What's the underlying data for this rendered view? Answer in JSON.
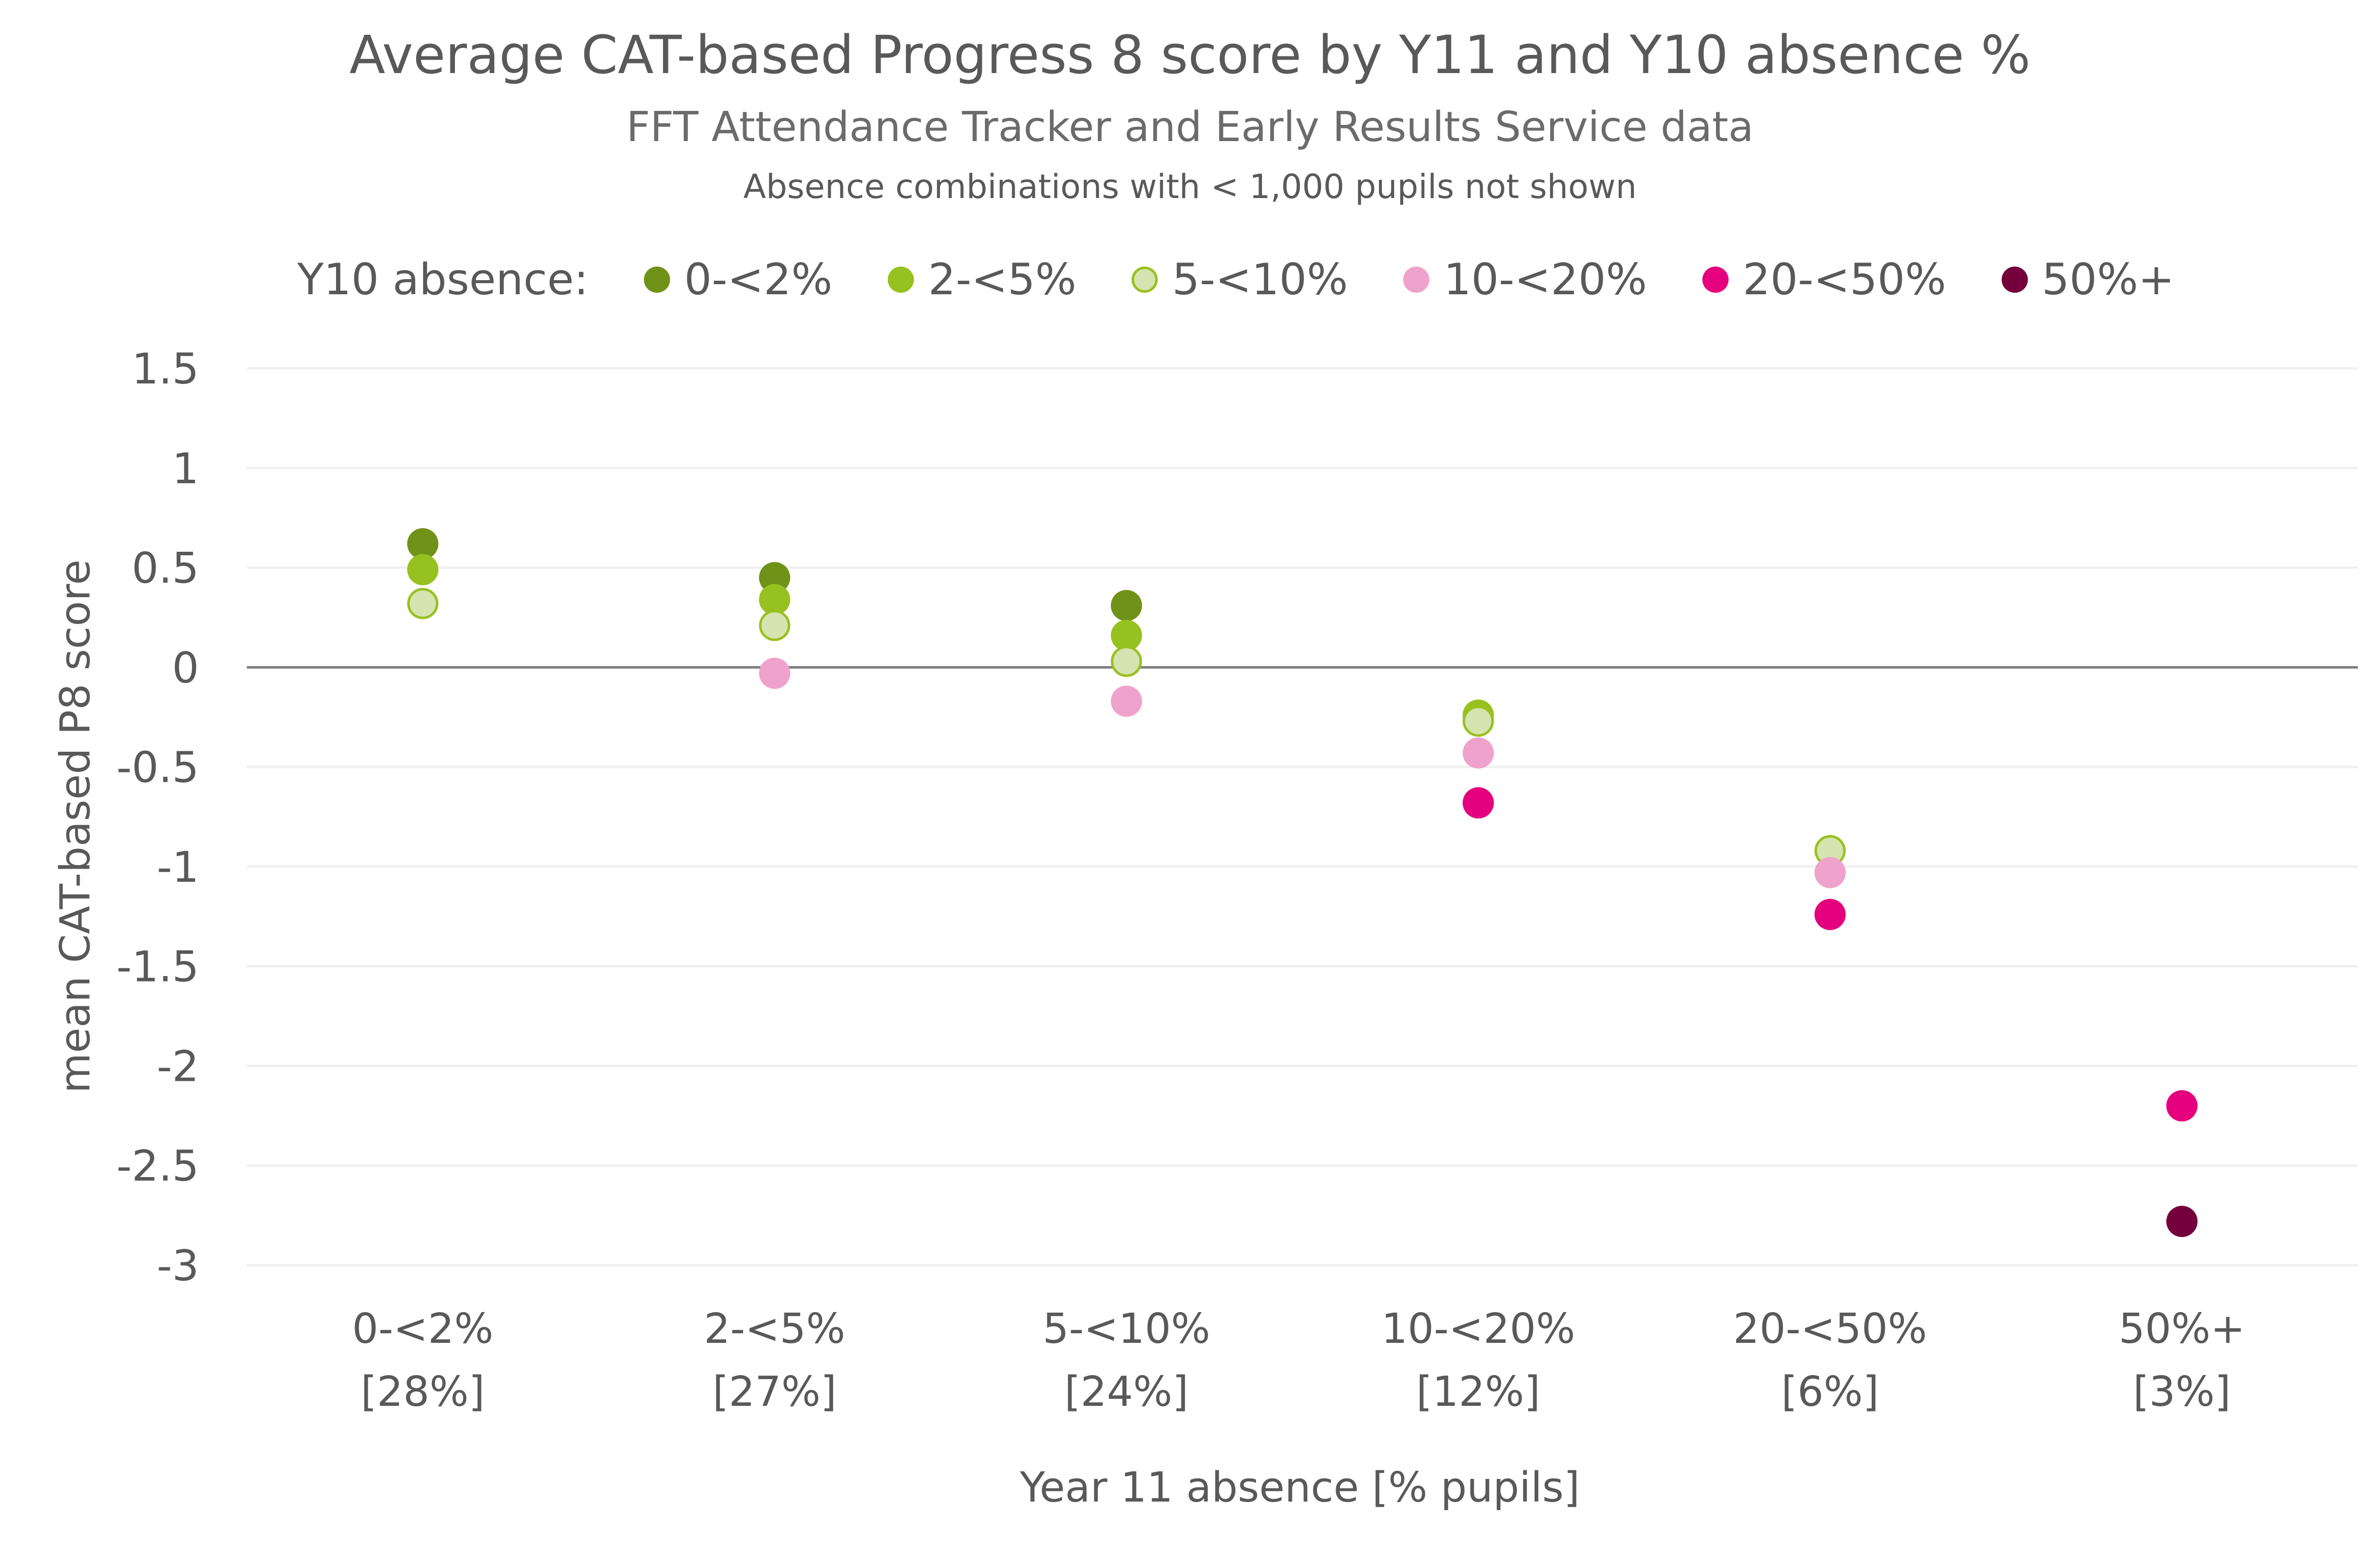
{
  "header": {
    "title": "Average CAT-based Progress 8 score by Y11 and Y10 absence %",
    "subtitle": "FFT Attendance Tracker and Early Results Service data",
    "note": "Absence combinations with < 1,000 pupils not shown"
  },
  "legend": {
    "title": "Y10 absence:"
  },
  "chart_data": {
    "type": "scatter",
    "title": "Average CAT-based Progress 8 score by Y11 and Y10 absence %",
    "subtitle": "FFT Attendance Tracker and Early Results Service data",
    "annotation": "Absence combinations with < 1,000 pupils not shown",
    "xlabel": "Year 11 absence [% pupils]",
    "ylabel": "mean CAT-based P8 score",
    "categories": [
      "0-<2%",
      "2-<5%",
      "5-<10%",
      "10-<20%",
      "20-<50%",
      "50%+"
    ],
    "category_shares": [
      "[28%]",
      "[27%]",
      "[24%]",
      "[12%]",
      "[6%]",
      "[3%]"
    ],
    "ylim": [
      -3,
      1.5
    ],
    "yticks": [
      1.5,
      1,
      0.5,
      0,
      -0.5,
      -1,
      -1.5,
      -2,
      -2.5,
      -3
    ],
    "ytick_labels": [
      "1.5",
      "1",
      "0.5",
      "0",
      "-0.5",
      "-1",
      "-1.5",
      "-2",
      "-2.5",
      "-3"
    ],
    "grid": true,
    "legend_position": "top",
    "legend_title": "Y10 absence:",
    "series": [
      {
        "name": "0-<2%",
        "color": "#719218",
        "stroke": "#719218",
        "values": [
          0.62,
          0.45,
          0.31,
          null,
          null,
          null
        ]
      },
      {
        "name": "2-<5%",
        "color": "#97C11F",
        "stroke": "#97C11F",
        "values": [
          0.49,
          0.34,
          0.16,
          -0.24,
          null,
          null
        ]
      },
      {
        "name": "5-<10%",
        "color": "#D5E4B0",
        "stroke": "#97C11F",
        "values": [
          0.32,
          0.21,
          0.03,
          -0.27,
          -0.92,
          null
        ]
      },
      {
        "name": "10-<20%",
        "color": "#EFA3CC",
        "stroke": "#EFA3CC",
        "values": [
          null,
          -0.03,
          -0.17,
          -0.43,
          -1.03,
          null
        ]
      },
      {
        "name": "20-<50%",
        "color": "#E5007D",
        "stroke": "#E5007D",
        "values": [
          null,
          null,
          null,
          -0.68,
          -1.24,
          -2.2
        ]
      },
      {
        "name": "50%+",
        "color": "#74003C",
        "stroke": "#74003C",
        "values": [
          null,
          null,
          null,
          null,
          null,
          -2.78
        ]
      }
    ]
  }
}
